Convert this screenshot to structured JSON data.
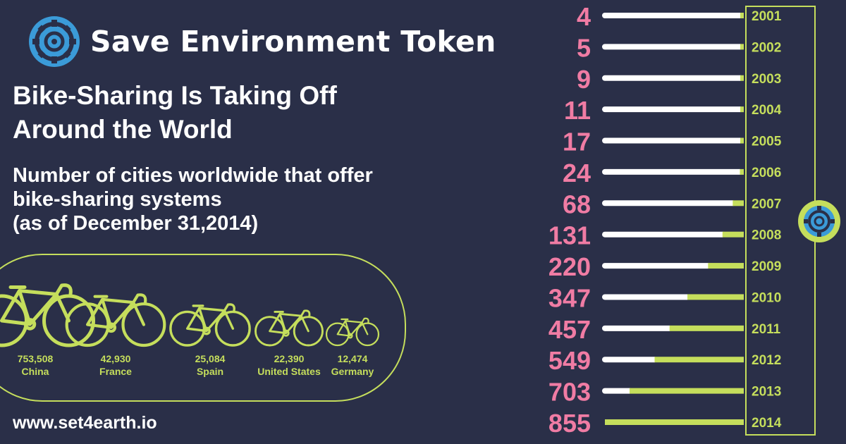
{
  "brand": {
    "name": "Save Environment Token",
    "logo_icon": "gear-logo-icon"
  },
  "headline": [
    "Bike-Sharing Is Taking Off",
    "Around the World"
  ],
  "subtitle": [
    "Number of cities worldwide that offer",
    "bike-sharing systems",
    "(as of December 31,2014)"
  ],
  "website": "www.set4earth.io",
  "colors": {
    "background": "#2a2f48",
    "accent": "#c5de5c",
    "number": "#f07ca4",
    "bar_base": "#ffffff"
  },
  "chart_data": [
    {
      "type": "bar",
      "orientation": "horizontal",
      "title": "",
      "categories": [
        "2001",
        "2002",
        "2003",
        "2004",
        "2005",
        "2006",
        "2007",
        "2008",
        "2009",
        "2010",
        "2011",
        "2012",
        "2013",
        "2014"
      ],
      "values": [
        4,
        5,
        9,
        11,
        17,
        24,
        68,
        131,
        220,
        347,
        457,
        549,
        703,
        855
      ],
      "value_labels": [
        "4",
        "5",
        "9",
        "11",
        "17",
        "24",
        "68",
        "131",
        "220",
        "347",
        "457",
        "549",
        "703",
        "855"
      ]
    },
    {
      "type": "bar",
      "title": "",
      "categories": [
        "China",
        "France",
        "Spain",
        "United States",
        "Germany"
      ],
      "values": [
        753508,
        42930,
        25084,
        22390,
        12474
      ],
      "value_labels": [
        "753,508",
        "42,930",
        "25,084",
        "22,390",
        "12,474"
      ],
      "mark": "bicycle-icon"
    }
  ]
}
